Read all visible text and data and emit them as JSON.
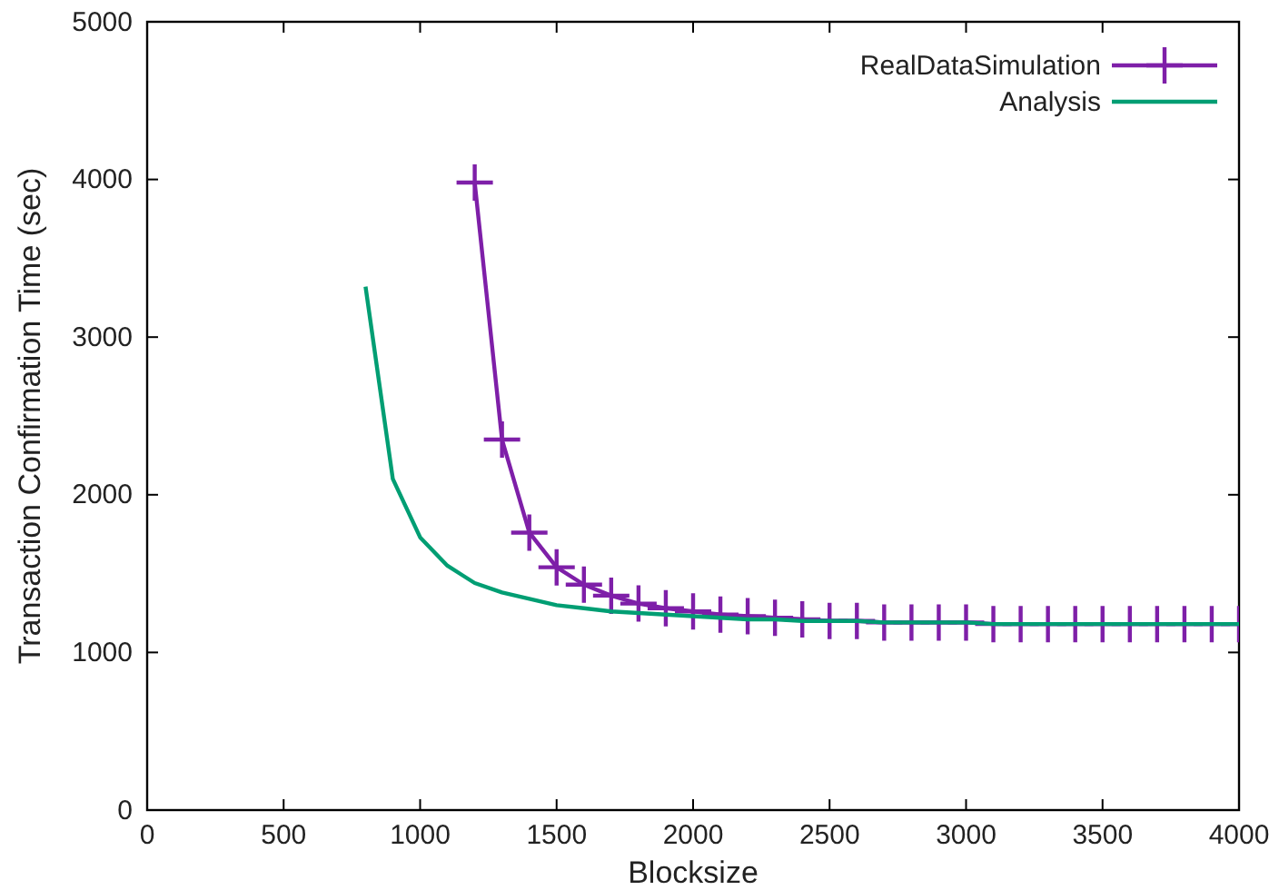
{
  "chart_data": {
    "type": "line",
    "xlabel": "Blocksize",
    "ylabel": "Transaction Confirmation Time (sec)",
    "xlim": [
      0,
      4000
    ],
    "ylim": [
      0,
      5000
    ],
    "xticks": [
      0,
      500,
      1000,
      1500,
      2000,
      2500,
      3000,
      3500,
      4000
    ],
    "yticks": [
      0,
      1000,
      2000,
      3000,
      4000,
      5000
    ],
    "grid": false,
    "legend": "top right",
    "series": [
      {
        "name": "RealDataSimulation",
        "color": "#7e1fa8",
        "marker": "cross",
        "x": [
          1200,
          1300,
          1400,
          1500,
          1600,
          1700,
          1800,
          1900,
          2000,
          2100,
          2200,
          2300,
          2400,
          2500,
          2600,
          2700,
          2800,
          2900,
          3000,
          3100,
          3200,
          3300,
          3400,
          3500,
          3600,
          3700,
          3800,
          3900,
          4000
        ],
        "values": [
          3980,
          2350,
          1760,
          1540,
          1430,
          1360,
          1310,
          1280,
          1260,
          1240,
          1230,
          1220,
          1210,
          1200,
          1200,
          1190,
          1190,
          1190,
          1190,
          1180,
          1180,
          1180,
          1180,
          1180,
          1180,
          1180,
          1180,
          1180,
          1180
        ]
      },
      {
        "name": "Analysis",
        "color": "#009e73",
        "marker": "none",
        "x": [
          800,
          900,
          1000,
          1100,
          1200,
          1300,
          1400,
          1500,
          1600,
          1700,
          1800,
          1900,
          2000,
          2100,
          2200,
          2300,
          2400,
          2500,
          2600,
          2700,
          2800,
          2900,
          3000,
          3100,
          3200,
          3300,
          3400,
          3500,
          3600,
          3700,
          3800,
          3900,
          4000
        ],
        "values": [
          3320,
          2100,
          1730,
          1550,
          1440,
          1380,
          1340,
          1300,
          1280,
          1260,
          1250,
          1240,
          1230,
          1220,
          1210,
          1210,
          1200,
          1200,
          1200,
          1190,
          1190,
          1190,
          1190,
          1180,
          1180,
          1180,
          1180,
          1180,
          1180,
          1180,
          1180,
          1180,
          1180
        ]
      }
    ]
  }
}
